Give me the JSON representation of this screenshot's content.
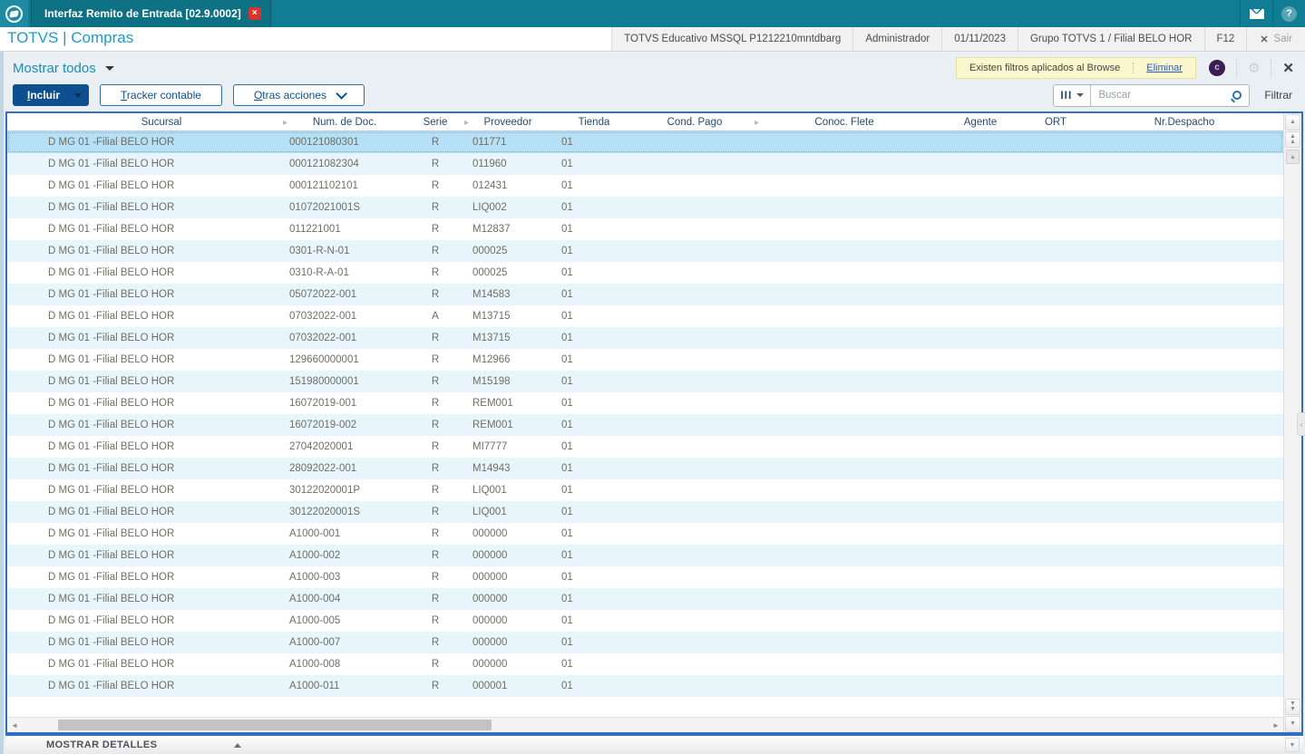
{
  "window": {
    "tab_title": "Interfaz Remito de Entrada [02.9.0002]",
    "app_title": "TOTVS | Compras",
    "env_info": [
      "TOTVS Educativo MSSQL P1212210mntdbarg",
      "Administrador",
      "01/11/2023",
      "Grupo TOTVS 1 / Filial BELO HOR",
      "F12"
    ],
    "exit_label": "Sair"
  },
  "toolbar": {
    "view_selector": "Mostrar todos",
    "filter_notice": "Existen filtros aplicados al Browse",
    "filter_remove_label": "Eliminar",
    "include_label": "Incluir",
    "tracker_label": "Tracker contable",
    "other_actions_label": "Otras acciones",
    "search_placeholder": "Buscar",
    "filter_label": "Filtrar"
  },
  "table": {
    "columns": [
      "Sucursal",
      "Num. de Doc.",
      "Serie",
      "Proveedor",
      "Tienda",
      "Cond. Pago",
      "Conoc. Flete",
      "Agente",
      "ORT",
      "Nr.Despacho"
    ],
    "rows": [
      {
        "sucursal": "D MG 01 -Filial BELO HOR",
        "num_doc": "000121080301",
        "serie": "R",
        "proveedor": "011771",
        "tienda": "01",
        "status": "tan",
        "selected": true
      },
      {
        "sucursal": "D MG 01 -Filial BELO HOR",
        "num_doc": "000121082304",
        "serie": "R",
        "proveedor": "011960",
        "tienda": "01",
        "status": "tan"
      },
      {
        "sucursal": "D MG 01 -Filial BELO HOR",
        "num_doc": "000121102101",
        "serie": "R",
        "proveedor": "012431",
        "tienda": "01",
        "status": "tan"
      },
      {
        "sucursal": "D MG 01 -Filial BELO HOR",
        "num_doc": "01072021001S",
        "serie": "R",
        "proveedor": "LIQ002",
        "tienda": "01",
        "status": "tan"
      },
      {
        "sucursal": "D MG 01 -Filial BELO HOR",
        "num_doc": "011221001",
        "serie": "R",
        "proveedor": "M12837",
        "tienda": "01",
        "status": "tan"
      },
      {
        "sucursal": "D MG 01 -Filial BELO HOR",
        "num_doc": "0301-R-N-01",
        "serie": "R",
        "proveedor": "000025",
        "tienda": "01",
        "status": "tan"
      },
      {
        "sucursal": "D MG 01 -Filial BELO HOR",
        "num_doc": "0310-R-A-01",
        "serie": "R",
        "proveedor": "000025",
        "tienda": "01",
        "status": "tan"
      },
      {
        "sucursal": "D MG 01 -Filial BELO HOR",
        "num_doc": "05072022-001",
        "serie": "R",
        "proveedor": "M14583",
        "tienda": "01",
        "status": "tan"
      },
      {
        "sucursal": "D MG 01 -Filial BELO HOR",
        "num_doc": "07032022-001",
        "serie": "A",
        "proveedor": "M13715",
        "tienda": "01",
        "status": "gray"
      },
      {
        "sucursal": "D MG 01 -Filial BELO HOR",
        "num_doc": "07032022-001",
        "serie": "R",
        "proveedor": "M13715",
        "tienda": "01",
        "status": "gray"
      },
      {
        "sucursal": "D MG 01 -Filial BELO HOR",
        "num_doc": "129660000001",
        "serie": "R",
        "proveedor": "M12966",
        "tienda": "01",
        "status": "tan"
      },
      {
        "sucursal": "D MG 01 -Filial BELO HOR",
        "num_doc": "151980000001",
        "serie": "R",
        "proveedor": "M15198",
        "tienda": "01",
        "status": "tan"
      },
      {
        "sucursal": "D MG 01 -Filial BELO HOR",
        "num_doc": "16072019-001",
        "serie": "R",
        "proveedor": "REM001",
        "tienda": "01",
        "status": "tan"
      },
      {
        "sucursal": "D MG 01 -Filial BELO HOR",
        "num_doc": "16072019-002",
        "serie": "R",
        "proveedor": "REM001",
        "tienda": "01",
        "status": "tan"
      },
      {
        "sucursal": "D MG 01 -Filial BELO HOR",
        "num_doc": "27042020001",
        "serie": "R",
        "proveedor": "MI7777",
        "tienda": "01",
        "status": "tan"
      },
      {
        "sucursal": "D MG 01 -Filial BELO HOR",
        "num_doc": "28092022-001",
        "serie": "R",
        "proveedor": "M14943",
        "tienda": "01",
        "status": "tan"
      },
      {
        "sucursal": "D MG 01 -Filial BELO HOR",
        "num_doc": "30122020001P",
        "serie": "R",
        "proveedor": "LIQ001",
        "tienda": "01",
        "status": "tan"
      },
      {
        "sucursal": "D MG 01 -Filial BELO HOR",
        "num_doc": "30122020001S",
        "serie": "R",
        "proveedor": "LIQ001",
        "tienda": "01",
        "status": "tan"
      },
      {
        "sucursal": "D MG 01 -Filial BELO HOR",
        "num_doc": "A1000-001",
        "serie": "R",
        "proveedor": "000000",
        "tienda": "01",
        "status": "tan"
      },
      {
        "sucursal": "D MG 01 -Filial BELO HOR",
        "num_doc": "A1000-002",
        "serie": "R",
        "proveedor": "000000",
        "tienda": "01",
        "status": "tan"
      },
      {
        "sucursal": "D MG 01 -Filial BELO HOR",
        "num_doc": "A1000-003",
        "serie": "R",
        "proveedor": "000000",
        "tienda": "01",
        "status": "tan"
      },
      {
        "sucursal": "D MG 01 -Filial BELO HOR",
        "num_doc": "A1000-004",
        "serie": "R",
        "proveedor": "000000",
        "tienda": "01",
        "status": "tan"
      },
      {
        "sucursal": "D MG 01 -Filial BELO HOR",
        "num_doc": "A1000-005",
        "serie": "R",
        "proveedor": "000000",
        "tienda": "01",
        "status": "tan"
      },
      {
        "sucursal": "D MG 01 -Filial BELO HOR",
        "num_doc": "A1000-007",
        "serie": "R",
        "proveedor": "000000",
        "tienda": "01",
        "status": "tan"
      },
      {
        "sucursal": "D MG 01 -Filial BELO HOR",
        "num_doc": "A1000-008",
        "serie": "R",
        "proveedor": "000000",
        "tienda": "01",
        "status": "tan"
      },
      {
        "sucursal": "D MG 01 -Filial BELO HOR",
        "num_doc": "A1000-011",
        "serie": "R",
        "proveedor": "000001",
        "tienda": "01",
        "status": "tan"
      }
    ]
  },
  "footer": {
    "details_label": "MOSTRAR DETALLES"
  },
  "colors": {
    "topbar_teal": "#117d94",
    "brand_blue": "#1b9dc9",
    "primary_button": "#0d4f90",
    "panel_border": "#3070bf",
    "selected_row": "#b5e0f5",
    "row_alt": "#e9f5fc",
    "notice_yellow": "#fbf8cf",
    "ball_tan": "#a99470",
    "ball_gray": "#a7a7a7"
  }
}
